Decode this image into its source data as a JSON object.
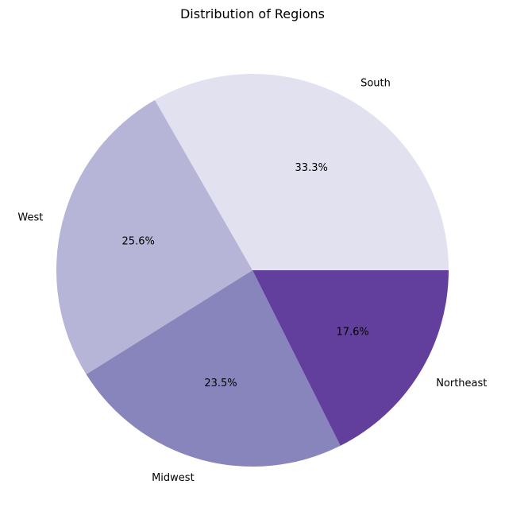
{
  "chart_data": {
    "type": "pie",
    "title": "Distribution of Regions",
    "categories": [
      "South",
      "West",
      "Midwest",
      "Northeast"
    ],
    "values": [
      33.3,
      25.6,
      23.5,
      17.6
    ],
    "value_labels": [
      "33.3%",
      "25.6%",
      "23.5%",
      "17.6%"
    ],
    "colors": [
      "#e2e1ef",
      "#b6b5d8",
      "#8885bc",
      "#623f9d"
    ],
    "start_angle_deg": 0,
    "direction": "counterclockwise",
    "legend": false
  }
}
